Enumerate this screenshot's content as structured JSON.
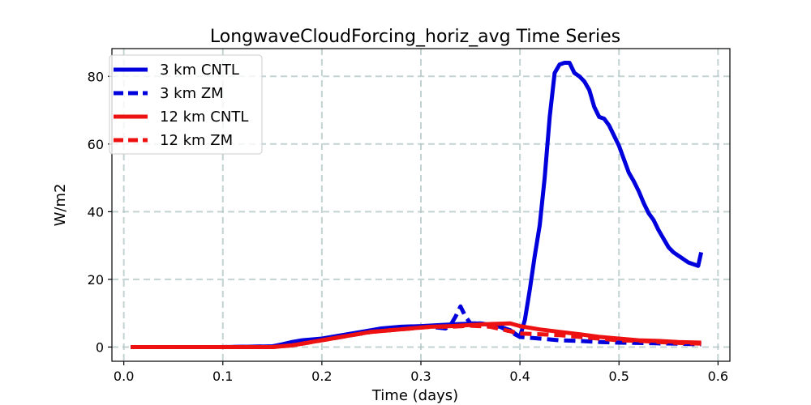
{
  "chart_data": {
    "type": "line",
    "title": "LongwaveCloudForcing_horiz_avg Time Series",
    "xlabel": "Time (days)",
    "ylabel": "W/m2",
    "xlim": [
      -0.012,
      0.612
    ],
    "ylim": [
      -4.2,
      88.2
    ],
    "xticks": [
      0.0,
      0.1,
      0.2,
      0.3,
      0.4,
      0.5,
      0.6
    ],
    "xtick_labels": [
      "0.0",
      "0.1",
      "0.2",
      "0.3",
      "0.4",
      "0.5",
      "0.6"
    ],
    "yticks": [
      0,
      20,
      40,
      60,
      80
    ],
    "ytick_labels": [
      "0",
      "20",
      "40",
      "60",
      "80"
    ],
    "grid": true,
    "legend_position": "top-left",
    "series": [
      {
        "name": "3 km CNTL",
        "color": "#0000dd",
        "style": "solid",
        "x": [
          0.007,
          0.05,
          0.1,
          0.15,
          0.16,
          0.17,
          0.18,
          0.2,
          0.22,
          0.24,
          0.26,
          0.28,
          0.3,
          0.32,
          0.34,
          0.36,
          0.37,
          0.38,
          0.39,
          0.4,
          0.405,
          0.41,
          0.415,
          0.42,
          0.425,
          0.43,
          0.435,
          0.44,
          0.445,
          0.45,
          0.455,
          0.46,
          0.465,
          0.47,
          0.475,
          0.48,
          0.485,
          0.49,
          0.495,
          0.5,
          0.505,
          0.51,
          0.515,
          0.52,
          0.525,
          0.53,
          0.535,
          0.54,
          0.545,
          0.55,
          0.555,
          0.56,
          0.565,
          0.57,
          0.575,
          0.58,
          0.583
        ],
        "y": [
          0,
          0,
          0,
          0.2,
          0.8,
          1.5,
          2,
          2.5,
          3.5,
          4.5,
          5.5,
          6,
          6.2,
          6.5,
          6.8,
          7,
          6.5,
          6,
          5,
          3,
          8,
          17,
          27,
          36,
          50,
          68,
          81,
          83.5,
          84,
          84,
          81,
          80,
          78.5,
          76,
          71,
          68,
          67.5,
          65.5,
          62.5,
          59.5,
          55.5,
          51.5,
          49,
          46,
          42.5,
          39.5,
          37.5,
          34.5,
          32,
          29.5,
          28,
          27,
          26,
          25,
          24.5,
          24,
          28
        ]
      },
      {
        "name": "3 km ZM",
        "color": "#0000dd",
        "style": "dashed",
        "x": [
          0.007,
          0.05,
          0.1,
          0.15,
          0.17,
          0.19,
          0.21,
          0.23,
          0.25,
          0.27,
          0.29,
          0.31,
          0.325,
          0.33,
          0.335,
          0.34,
          0.345,
          0.35,
          0.36,
          0.37,
          0.38,
          0.39,
          0.4,
          0.42,
          0.44,
          0.46,
          0.48,
          0.5,
          0.52,
          0.54,
          0.56,
          0.583
        ],
        "y": [
          0,
          0,
          0,
          0.2,
          1,
          2,
          2.5,
          3.5,
          4.5,
          5.5,
          6,
          6,
          5.5,
          6.5,
          9,
          12,
          9,
          7,
          7,
          6.5,
          6,
          4.5,
          3,
          2.5,
          2,
          1.8,
          1.5,
          1.3,
          1.2,
          1.1,
          1.0,
          0.8
        ]
      },
      {
        "name": "12 km CNTL",
        "color": "#ee1111",
        "style": "solid",
        "x": [
          0.007,
          0.05,
          0.1,
          0.15,
          0.17,
          0.19,
          0.21,
          0.23,
          0.25,
          0.27,
          0.29,
          0.31,
          0.33,
          0.35,
          0.37,
          0.39,
          0.4,
          0.42,
          0.44,
          0.46,
          0.48,
          0.5,
          0.52,
          0.54,
          0.56,
          0.583
        ],
        "y": [
          0,
          0,
          0,
          0,
          0.5,
          1.5,
          2.5,
          3.5,
          4.5,
          5,
          5.5,
          6,
          6.2,
          6.5,
          6.8,
          7,
          6.2,
          5.2,
          4.5,
          3.8,
          3,
          2.5,
          2,
          1.8,
          1.5,
          1.3
        ]
      },
      {
        "name": "12 km ZM",
        "color": "#ee1111",
        "style": "dashed",
        "x": [
          0.007,
          0.05,
          0.1,
          0.15,
          0.17,
          0.19,
          0.21,
          0.23,
          0.25,
          0.27,
          0.29,
          0.31,
          0.33,
          0.35,
          0.37,
          0.385,
          0.4,
          0.42,
          0.44,
          0.46,
          0.48,
          0.5,
          0.52,
          0.54,
          0.56,
          0.583
        ],
        "y": [
          0,
          0,
          0,
          0,
          0.5,
          1.5,
          2.5,
          3.5,
          4.5,
          5,
          5.5,
          6,
          6,
          6.3,
          6,
          5,
          4,
          3.8,
          3.5,
          3,
          2.5,
          2,
          1.8,
          1.5,
          1.2,
          1.0
        ]
      }
    ]
  }
}
